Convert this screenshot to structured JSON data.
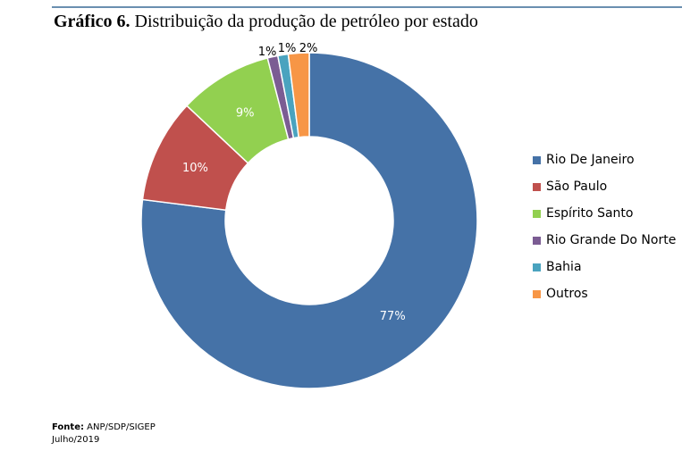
{
  "header": {
    "title_bold": "Gráfico 6.",
    "title_rest": " Distribuição da produção de petróleo por estado"
  },
  "chart_data": {
    "type": "pie",
    "variant": "donut",
    "title": "Gráfico 6. Distribuição da produção de petróleo por estado",
    "categories": [
      "Rio De Janeiro",
      "São Paulo",
      "Espírito Santo",
      "Rio Grande Do Norte",
      "Bahia",
      "Outros"
    ],
    "values": [
      77,
      10,
      9,
      1,
      1,
      2
    ],
    "labels": [
      "77%",
      "10%",
      "9%",
      "1%",
      "1%",
      "2%"
    ],
    "colors": [
      "#4572a7",
      "#c0504d",
      "#92d050",
      "#7b5c93",
      "#4aa3bf",
      "#f79646"
    ],
    "legend_position": "right"
  },
  "footer": {
    "source_label": "Fonte:",
    "source_value": " ANP/SDP/SIGEP",
    "date": "Julho/2019"
  }
}
